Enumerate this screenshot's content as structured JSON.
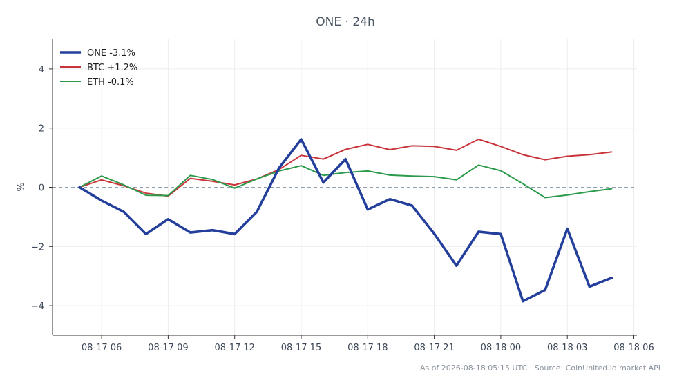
{
  "chart_data": {
    "type": "line",
    "title": "ONE · 24h",
    "xlabel": "",
    "ylabel": "%",
    "x_start": "08-17 05",
    "x_step_hours": 1,
    "x_ticks": [
      "08-17 06",
      "08-17 09",
      "08-17 12",
      "08-17 15",
      "08-17 18",
      "08-17 21",
      "08-18 00",
      "08-18 03",
      "08-18 06"
    ],
    "y_ticks": [
      4,
      2,
      0,
      -2,
      -4
    ],
    "y_tick_labels": [
      "4",
      "2",
      "0",
      "−2",
      "−4"
    ],
    "ylim": [
      -5,
      5
    ],
    "grid": true,
    "legend_position": "top-left",
    "zero_line": true,
    "series": [
      {
        "name": "ONE -3.1%",
        "color": "#233f9b",
        "values": [
          0.0,
          -0.45,
          -0.83,
          -1.58,
          -1.08,
          -1.53,
          -1.45,
          -1.58,
          -0.83,
          0.65,
          1.62,
          0.16,
          0.95,
          -0.75,
          -0.4,
          -0.62,
          -1.57,
          -2.65,
          -1.5,
          -1.58,
          -3.85,
          -3.47,
          -1.4,
          -3.36,
          -3.06
        ]
      },
      {
        "name": "BTC +1.2%",
        "color": "#c9343a",
        "values": [
          0.0,
          0.25,
          0.05,
          -0.2,
          -0.3,
          0.3,
          0.2,
          0.08,
          0.28,
          0.6,
          1.08,
          0.95,
          1.28,
          1.45,
          1.27,
          1.4,
          1.38,
          1.25,
          1.62,
          1.38,
          1.1,
          0.93,
          1.05,
          1.1,
          1.19
        ]
      },
      {
        "name": "ETH -0.1%",
        "color": "#2b9a4b",
        "values": [
          0.0,
          0.38,
          0.08,
          -0.27,
          -0.28,
          0.4,
          0.26,
          -0.03,
          0.28,
          0.55,
          0.73,
          0.4,
          0.5,
          0.55,
          0.41,
          0.38,
          0.36,
          0.25,
          0.75,
          0.56,
          0.12,
          -0.35,
          -0.26,
          -0.15,
          -0.05
        ]
      }
    ]
  },
  "footer": "As of 2026-08-18 05:15 UTC · Source: CoinUnited.io market API"
}
